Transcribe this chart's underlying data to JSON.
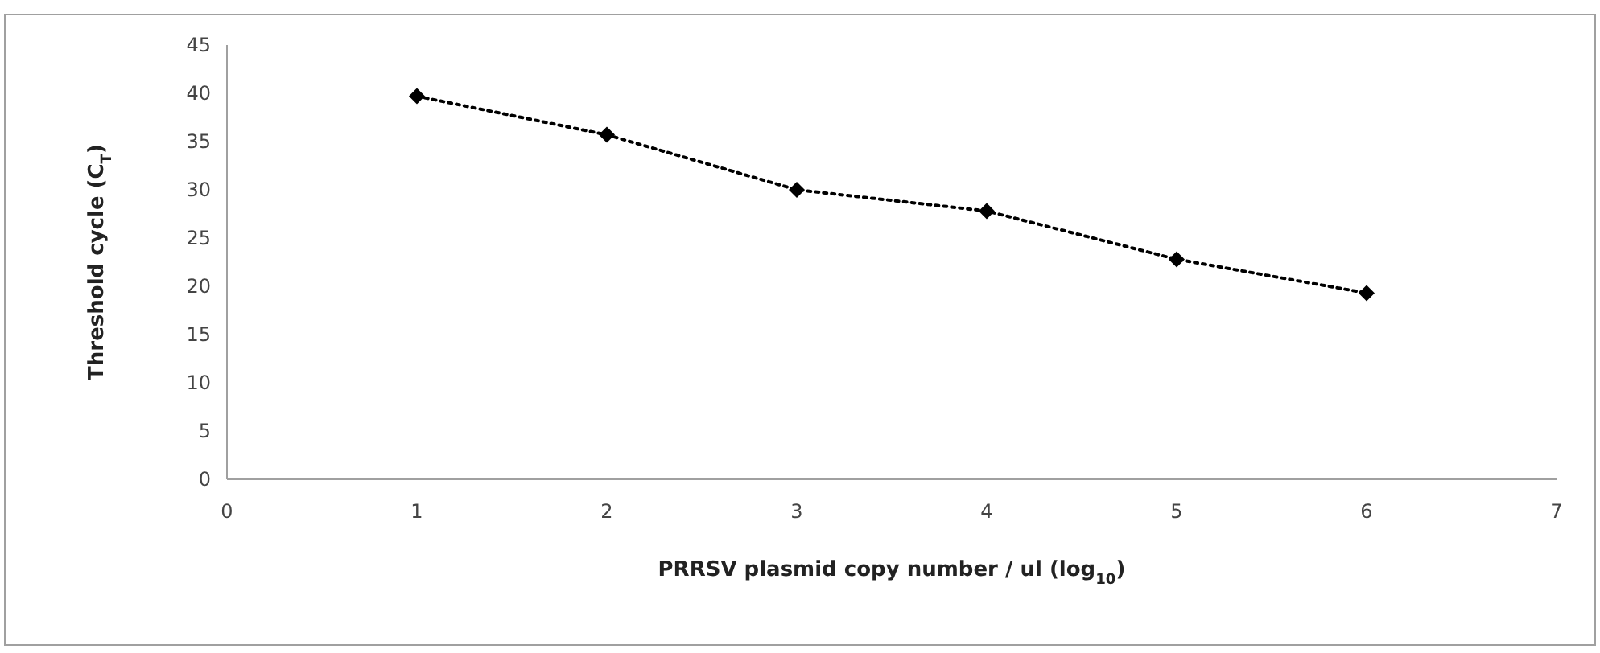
{
  "chart_data": {
    "type": "line",
    "xlabel": "PRRSV plasmid copy number / ul  (log$_{10}$)",
    "ylabel": "Threshold cycle (C$_{T}$)",
    "xlim": [
      0,
      7
    ],
    "xticks": [
      0,
      1,
      2,
      3,
      4,
      5,
      6,
      7
    ],
    "ylim": [
      0,
      45
    ],
    "yticks": [
      0,
      5,
      10,
      15,
      20,
      25,
      30,
      35,
      40,
      45
    ],
    "grid": false,
    "series": [
      {
        "color": "#000000",
        "marker": "diamond",
        "line_style": "dotted",
        "x": [
          1,
          2,
          3,
          4,
          5,
          6
        ],
        "values": [
          39.7,
          35.7,
          30,
          27.8,
          22.8,
          19.3
        ]
      }
    ]
  }
}
